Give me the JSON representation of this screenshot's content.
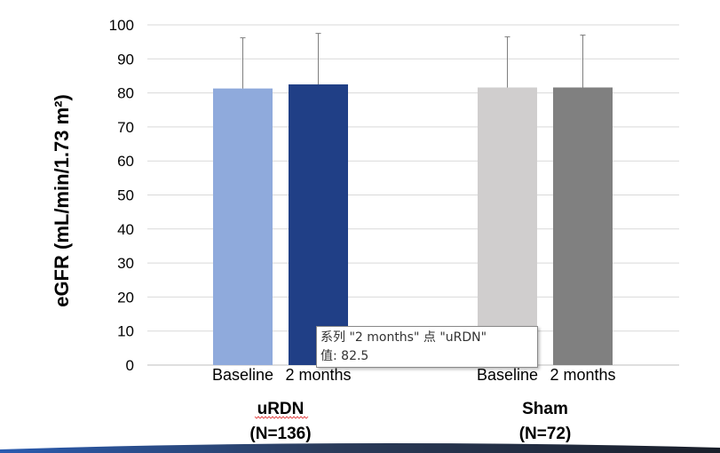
{
  "chart_data": {
    "type": "bar",
    "title": "",
    "ylabel": "eGFR (mL/min/1.73 m²)",
    "ylim": [
      0,
      100
    ],
    "yticks": [
      "0",
      "10",
      "20",
      "30",
      "40",
      "50",
      "60",
      "70",
      "80",
      "90",
      "100"
    ],
    "groups": [
      {
        "name": "uRDN",
        "sub": "(N=136)",
        "bars": [
          {
            "label": "Baseline",
            "value": 81.3,
            "err_upper": 96.2,
            "color": "#8faadc"
          },
          {
            "label": "2 months",
            "value": 82.5,
            "err_upper": 97.5,
            "color": "#203f86"
          }
        ]
      },
      {
        "name": "Sham",
        "sub": "(N=72)",
        "bars": [
          {
            "label": "Baseline",
            "value": 81.6,
            "err_upper": 96.5,
            "color": "#d0cece"
          },
          {
            "label": "2 months",
            "value": 81.6,
            "err_upper": 97.0,
            "color": "#808080"
          }
        ]
      }
    ]
  },
  "tooltip": {
    "line1": "系列 \"2  months\" 点 \"uRDN\"",
    "line2": "值: 82.5"
  }
}
